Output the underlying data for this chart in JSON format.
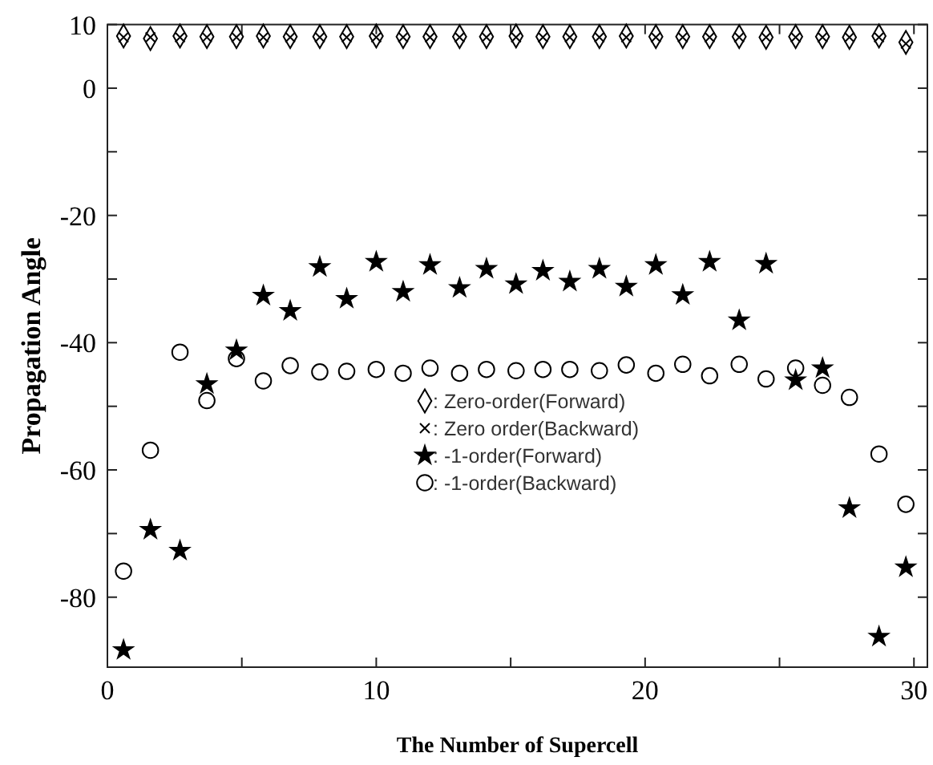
{
  "chart_data": {
    "type": "scatter",
    "xlabel": "The Number of Supercell",
    "ylabel": "Propagation Angle",
    "x": [
      0.6,
      1.6,
      2.7,
      3.7,
      4.8,
      5.8,
      6.8,
      7.9,
      8.9,
      10.0,
      11.0,
      12.0,
      13.1,
      14.1,
      15.2,
      16.2,
      17.2,
      18.3,
      19.3,
      20.4,
      21.4,
      22.4,
      23.5,
      24.5,
      25.6,
      26.6,
      27.6,
      28.7,
      29.7
    ],
    "series": [
      {
        "name": ": Zero-order(Forward)",
        "color": "#000000",
        "marker": "diamond",
        "values": [
          8.2,
          7.8,
          8.2,
          8.1,
          8.1,
          8.2,
          8.1,
          8.1,
          8.1,
          8.2,
          8.1,
          8.1,
          8.1,
          8.1,
          8.2,
          8.1,
          8.1,
          8.1,
          8.2,
          8.1,
          8.1,
          8.1,
          8.1,
          8.0,
          8.1,
          8.1,
          8.0,
          8.2,
          7.2
        ]
      },
      {
        "name": ": Zero order(Backward)",
        "color": "#000000",
        "marker": "cross",
        "values": [
          8,
          8,
          8,
          8,
          8,
          8,
          8,
          8,
          8,
          8,
          8,
          8,
          8,
          8,
          8,
          8,
          8,
          8,
          8,
          8,
          8,
          8,
          8,
          8,
          8,
          8,
          8,
          8,
          7
        ]
      },
      {
        "name": ": -1-order(Forward)",
        "color": "#000000",
        "marker": "star",
        "values": [
          -88.3,
          -69.4,
          -72.7,
          -46.5,
          -41.2,
          -32.6,
          -35.0,
          -28.1,
          -33.1,
          -27.3,
          -32.0,
          -27.8,
          -31.4,
          -28.4,
          -30.8,
          -28.7,
          -30.4,
          -28.4,
          -31.2,
          -27.8,
          -32.5,
          -27.3,
          -36.5,
          -27.6,
          -45.9,
          -44.0,
          -66.0,
          -86.2,
          -75.3
        ]
      },
      {
        "name": ": -1-order(Backward)",
        "color": "#000000",
        "marker": "circle",
        "values": [
          -75.9,
          -56.9,
          -41.5,
          -49.1,
          -42.5,
          -46.0,
          -43.6,
          -44.6,
          -44.5,
          -44.2,
          -44.8,
          -44.0,
          -44.8,
          -44.2,
          -44.4,
          -44.2,
          -44.2,
          -44.4,
          -43.5,
          -44.8,
          -43.4,
          -45.2,
          -43.4,
          -45.7,
          -44.0,
          -46.7,
          -48.6,
          -57.5,
          -65.4
        ]
      }
    ],
    "xlim": [
      0,
      30.5
    ],
    "xticks": [
      0,
      {
        "value": 5,
        "label": null
      },
      10,
      {
        "value": 15,
        "label": null
      },
      20,
      {
        "value": 25,
        "label": null
      },
      30
    ],
    "ylim": [
      -91,
      10
    ],
    "yticks": [
      10,
      0,
      {
        "value": -10,
        "label": null
      },
      -20,
      {
        "value": -30,
        "label": null
      },
      -40,
      {
        "value": -50,
        "label": null
      },
      -60,
      {
        "value": -70,
        "label": null
      },
      -80
    ],
    "legend": "center",
    "grid": false
  }
}
